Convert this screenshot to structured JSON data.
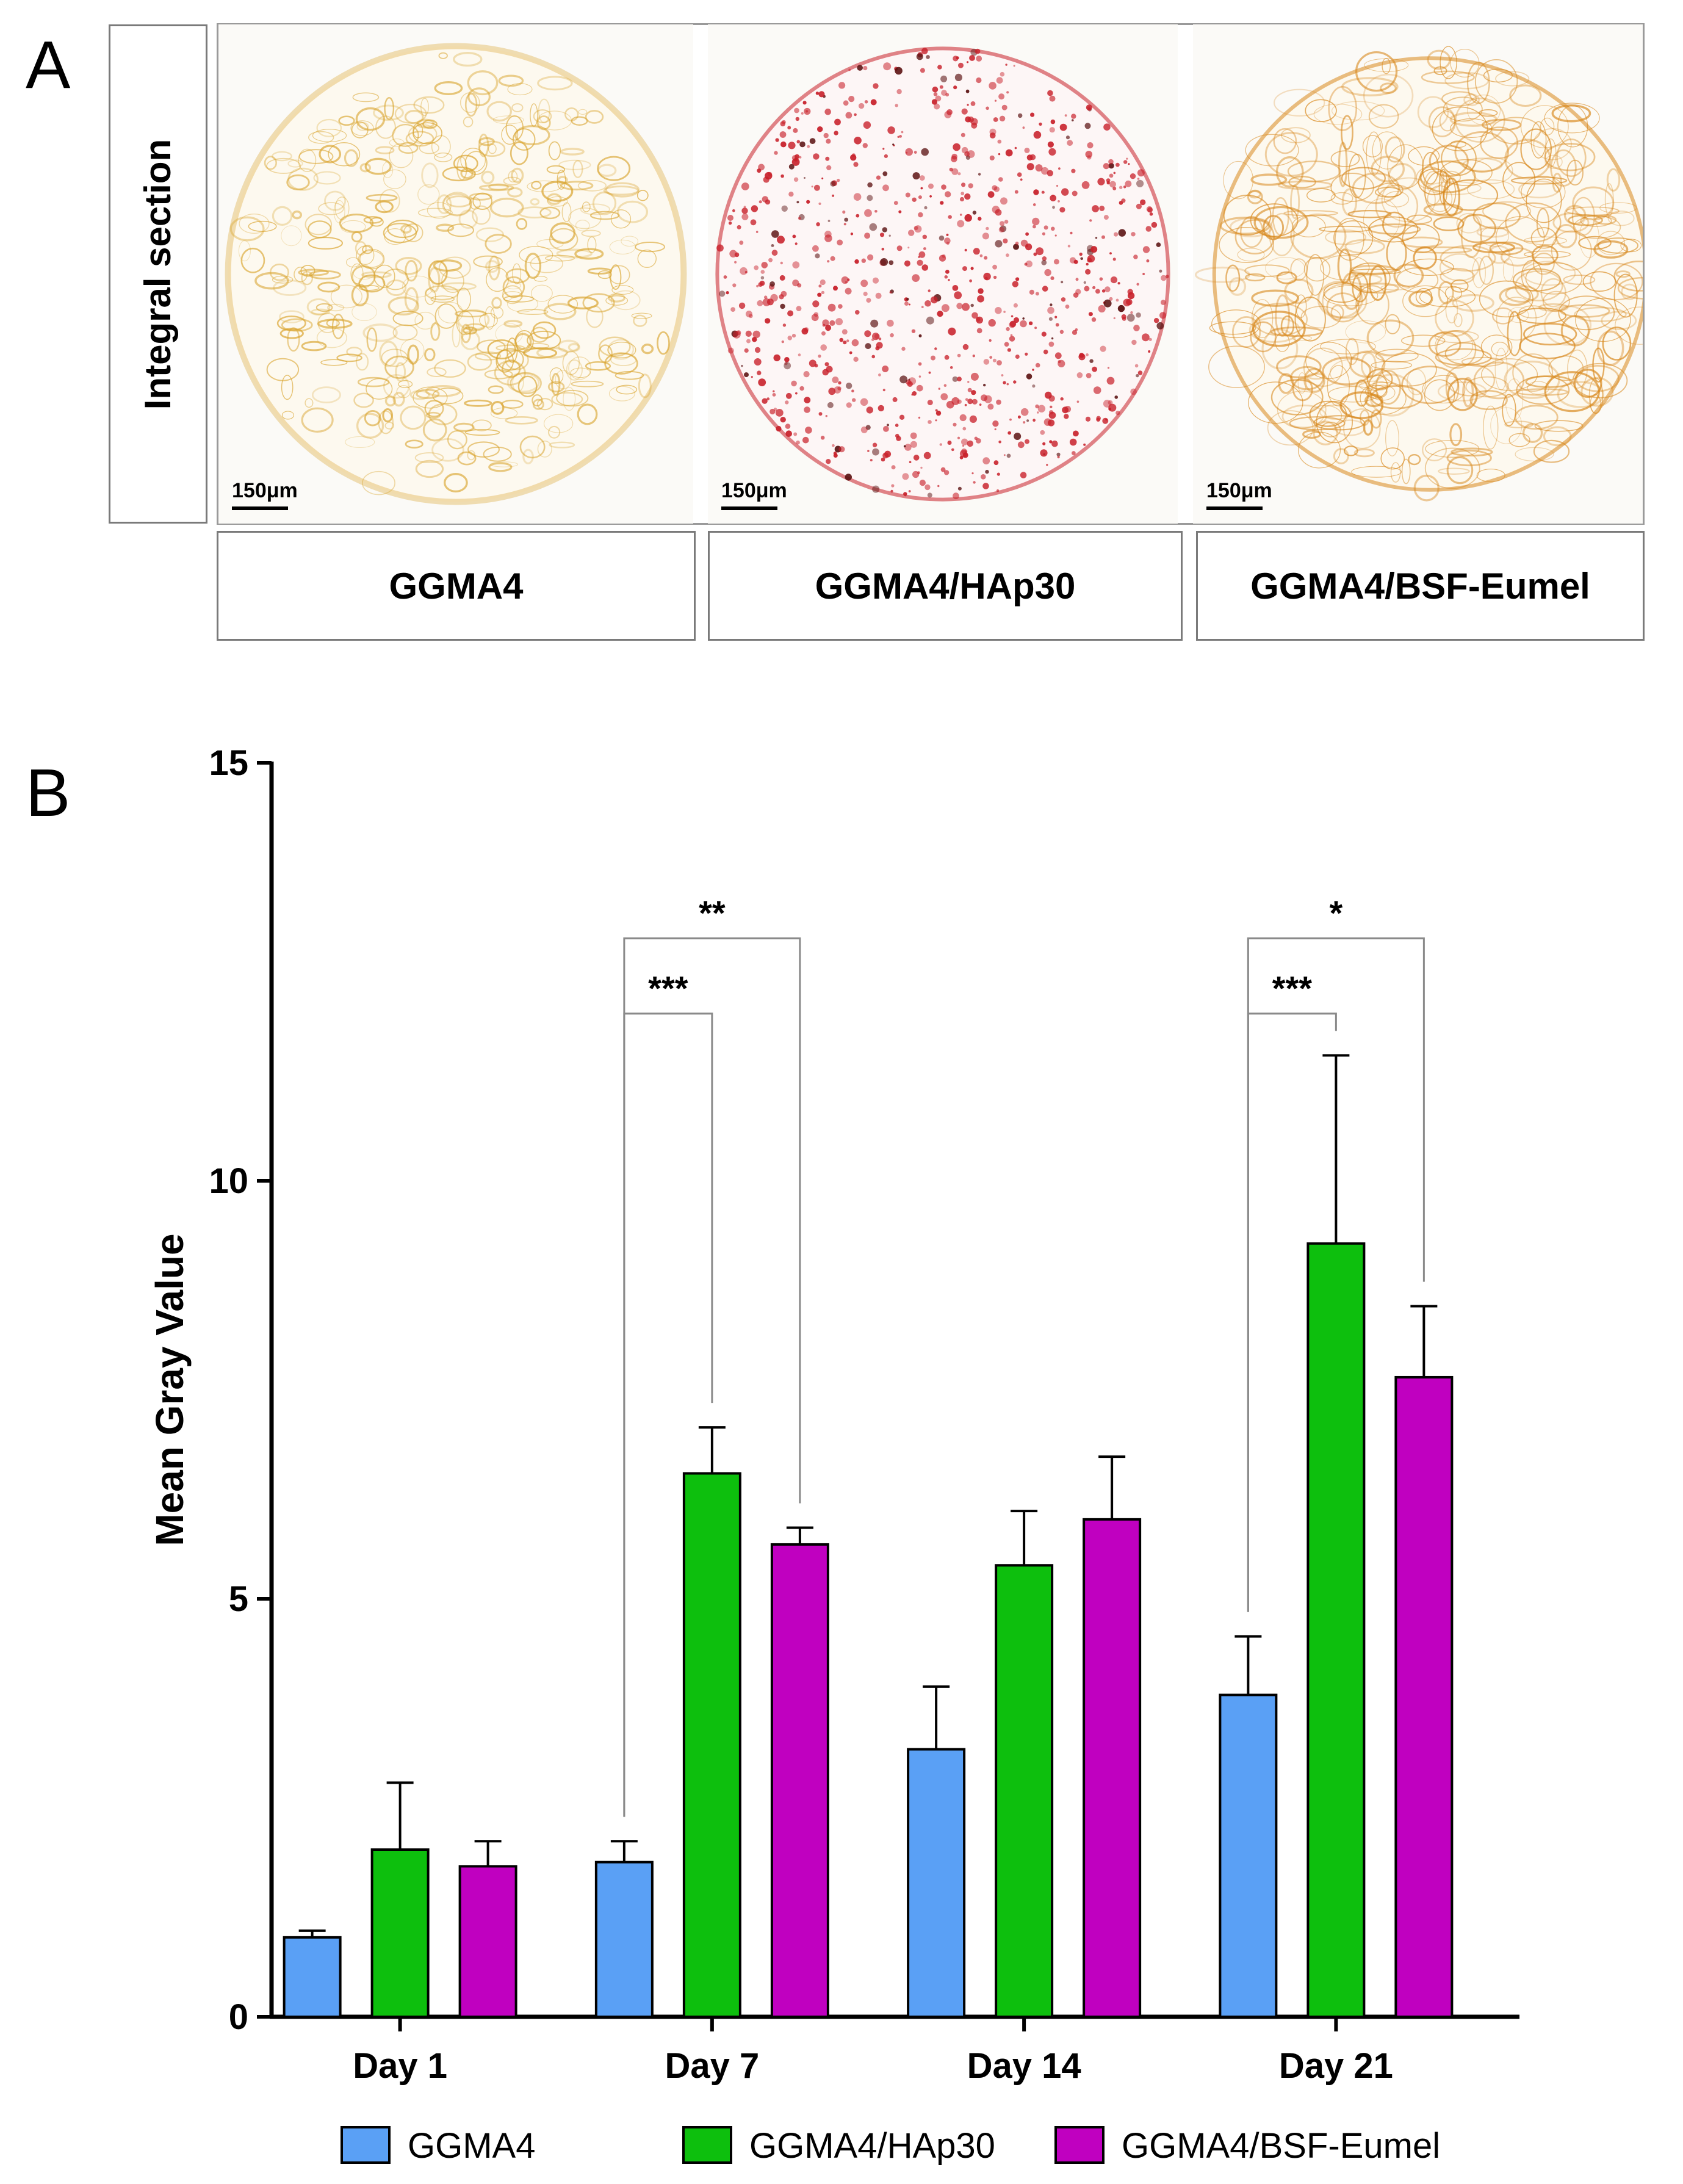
{
  "panel_a": {
    "letter": "A",
    "row_label": "Integral section",
    "images": [
      {
        "label": "GGMA4",
        "scale_bar": "150μm",
        "stain": "#d9a42e"
      },
      {
        "label": "GGMA4/HAp30",
        "scale_bar": "150μm",
        "stain": "#c8202a"
      },
      {
        "label": "GGMA4/BSF-Eumel",
        "scale_bar": "150μm",
        "stain": "#d8891e"
      }
    ]
  },
  "panel_b": {
    "letter": "B",
    "chart_data": {
      "type": "bar",
      "title": "",
      "xlabel": "",
      "ylabel": "Mean Gray Value",
      "ylim": [
        0,
        15
      ],
      "yticks": [
        "0",
        "5",
        "10",
        "15"
      ],
      "categories": [
        "Day 1",
        "Day 7",
        "Day 14",
        "Day 21"
      ],
      "series": [
        {
          "name": "GGMA4",
          "color": "#5aa0f5",
          "values": [
            0.95,
            1.85,
            3.2,
            3.85
          ],
          "errors": [
            0.08,
            0.25,
            0.75,
            0.7
          ]
        },
        {
          "name": "GGMA4/HAp30",
          "color": "#0dbf0d",
          "values": [
            2.0,
            6.5,
            5.4,
            9.25
          ],
          "errors": [
            0.8,
            0.55,
            0.65,
            2.25
          ]
        },
        {
          "name": "GGMA4/BSF-Eumel",
          "color": "#c000c0",
          "values": [
            1.8,
            5.65,
            5.95,
            7.65
          ],
          "errors": [
            0.3,
            0.2,
            0.75,
            0.85
          ]
        }
      ],
      "significance": [
        {
          "category": 1,
          "from_series": 0,
          "to_series": 1,
          "label": "***",
          "level": 12.0
        },
        {
          "category": 1,
          "from_series": 0,
          "to_series": 2,
          "label": "**",
          "level": 12.9
        },
        {
          "category": 3,
          "from_series": 0,
          "to_series": 1,
          "label": "***",
          "level": 12.0
        },
        {
          "category": 3,
          "from_series": 0,
          "to_series": 2,
          "label": "*",
          "level": 12.9
        }
      ],
      "legend_position": "bottom"
    }
  }
}
